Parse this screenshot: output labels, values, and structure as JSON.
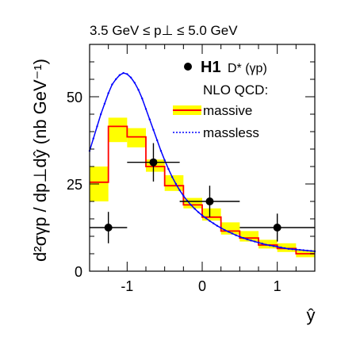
{
  "chart_data": {
    "type": "line",
    "title": "3.5 GeV ≤ p⊥ ≤ 5.0 GeV",
    "ylabel": "d²σγp / dp⊥dŷ (nb GeV⁻¹)",
    "xlabel": "ŷ",
    "xlim": [
      -1.5,
      1.5
    ],
    "ylim": [
      0,
      65
    ],
    "xticks": [
      -1,
      0,
      1
    ],
    "yticks": [
      0,
      25,
      50
    ],
    "grid": false,
    "legend_position": "top-right",
    "legend": {
      "experiment": "H1",
      "measurement": "D* (γp)",
      "theory_heading": "NLO QCD:",
      "massive_label": "massive",
      "massless_label": "massless"
    },
    "data_points": {
      "name": "H1",
      "points": [
        {
          "x": -1.25,
          "y": 12.5,
          "xerr": 0.25,
          "yerr": 4.5
        },
        {
          "x": -0.65,
          "y": 31.2,
          "xerr": 0.35,
          "yerr": 5.5
        },
        {
          "x": 0.1,
          "y": 20.0,
          "xerr": 0.4,
          "yerr": 4.5
        },
        {
          "x": 1.0,
          "y": 12.5,
          "xerr": 0.5,
          "yerr": 4.0
        }
      ]
    },
    "massive": {
      "name": "massive",
      "edges": [
        -1.5,
        -1.25,
        -1.0,
        -0.75,
        -0.5,
        -0.25,
        0.0,
        0.25,
        0.5,
        0.75,
        1.0,
        1.25,
        1.5
      ],
      "central": [
        25.5,
        41.5,
        38.5,
        30.0,
        24.5,
        19.0,
        15.5,
        11.5,
        9.5,
        7.5,
        6.5,
        5.0
      ],
      "low": [
        20.0,
        37.0,
        35.5,
        28.5,
        23.0,
        18.0,
        14.5,
        10.5,
        8.5,
        6.5,
        5.5,
        4.0
      ],
      "high": [
        30.0,
        44.0,
        41.0,
        32.0,
        27.5,
        21.0,
        18.0,
        14.0,
        11.5,
        9.0,
        8.0,
        6.0
      ]
    },
    "massless": {
      "name": "massless",
      "x": [
        -1.5,
        -1.45,
        -1.4,
        -1.35,
        -1.3,
        -1.25,
        -1.2,
        -1.15,
        -1.1,
        -1.05,
        -1.0,
        -0.95,
        -0.9,
        -0.85,
        -0.8,
        -0.75,
        -0.7,
        -0.65,
        -0.6,
        -0.55,
        -0.5,
        -0.45,
        -0.4,
        -0.35,
        -0.3,
        -0.25,
        -0.2,
        -0.15,
        -0.1,
        -0.05,
        0.0,
        0.05,
        0.1,
        0.15,
        0.2,
        0.25,
        0.3,
        0.35,
        0.4,
        0.45,
        0.5,
        0.55,
        0.6,
        0.65,
        0.7,
        0.75,
        0.8,
        0.85,
        0.9,
        0.95,
        1.0,
        1.05,
        1.1,
        1.15,
        1.2,
        1.25,
        1.3,
        1.35,
        1.4,
        1.45,
        1.5
      ],
      "y": [
        34.5,
        38.0,
        41.5,
        45.0,
        48.0,
        51.0,
        53.5,
        55.0,
        56.2,
        56.8,
        56.5,
        55.5,
        54.0,
        52.0,
        49.5,
        46.5,
        43.5,
        40.5,
        37.5,
        34.5,
        31.8,
        29.3,
        27.0,
        25.0,
        23.2,
        21.6,
        20.2,
        19.0,
        17.9,
        16.9,
        16.0,
        15.2,
        14.4,
        13.7,
        13.0,
        12.4,
        11.8,
        11.3,
        10.8,
        10.3,
        9.9,
        9.5,
        9.1,
        8.8,
        8.5,
        8.2,
        7.9,
        7.6,
        7.4,
        7.2,
        7.0,
        6.8,
        6.6,
        6.4,
        6.3,
        6.2,
        6.1,
        6.0,
        5.9,
        5.8,
        5.7
      ]
    },
    "colors": {
      "band": "#ffff00",
      "massive_line": "#ff0000",
      "massless_line": "#0000ff",
      "points": "#000000"
    }
  }
}
